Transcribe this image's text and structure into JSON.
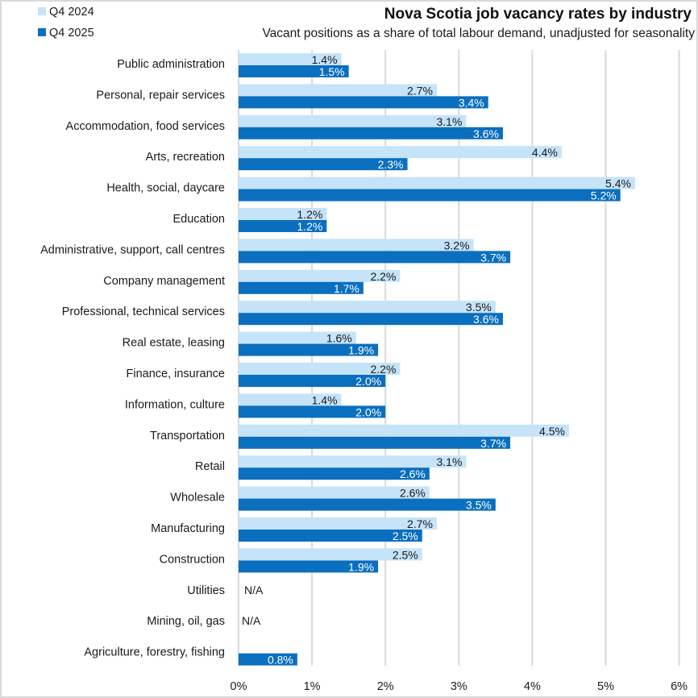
{
  "chart_data": {
    "type": "bar",
    "orientation": "horizontal",
    "title": "Nova Scotia job vacancy rates by industry",
    "subtitle": "Vacant positions as a share of total labour demand, unadjusted for seasonality",
    "xlabel": "",
    "ylabel": "",
    "xlim": [
      0,
      6
    ],
    "x_ticks": [
      "0%",
      "1%",
      "2%",
      "3%",
      "4%",
      "5%",
      "6%"
    ],
    "grid": "vertical",
    "legend_position": "top-left",
    "categories": [
      "Public administration",
      "Personal, repair services",
      "Accommodation, food services",
      "Arts, recreation",
      "Health, social, daycare",
      "Education",
      "Administrative, support, call centres",
      "Company management",
      "Professional, technical services",
      "Real estate, leasing",
      "Finance, insurance",
      "Information, culture",
      "Transportation",
      "Retail",
      "Wholesale",
      "Manufacturing",
      "Construction",
      "Utilities",
      "Mining, oil, gas",
      "Agriculture, forestry, fishing"
    ],
    "series": [
      {
        "name": "Q4 2024",
        "color": "#c5e3f9",
        "label_color": "#1a1a1a",
        "values": [
          1.4,
          2.7,
          3.1,
          4.4,
          5.4,
          1.2,
          3.2,
          2.2,
          3.5,
          1.6,
          2.2,
          1.4,
          4.5,
          3.1,
          2.6,
          2.7,
          2.5,
          null,
          null,
          null
        ],
        "labels": [
          "1.4%",
          "2.7%",
          "3.1%",
          "4.4%",
          "5.4%",
          "1.2%",
          "3.2%",
          "2.2%",
          "3.5%",
          "1.6%",
          "2.2%",
          "1.4%",
          "4.5%",
          "3.1%",
          "2.6%",
          "2.7%",
          "2.5%",
          "N/A",
          "N/A",
          ""
        ]
      },
      {
        "name": "Q4 2025",
        "color": "#0b6fbf",
        "label_color": "#ffffff",
        "values": [
          1.5,
          3.4,
          3.6,
          2.3,
          5.2,
          1.2,
          3.7,
          1.7,
          3.6,
          1.9,
          2.0,
          2.0,
          3.7,
          2.6,
          3.5,
          2.5,
          1.9,
          null,
          null,
          0.8
        ],
        "labels": [
          "1.5%",
          "3.4%",
          "3.6%",
          "2.3%",
          "5.2%",
          "1.2%",
          "3.7%",
          "1.7%",
          "3.6%",
          "1.9%",
          "2.0%",
          "2.0%",
          "3.7%",
          "2.6%",
          "3.5%",
          "2.5%",
          "1.9%",
          "",
          "",
          "0.8%"
        ]
      }
    ]
  }
}
